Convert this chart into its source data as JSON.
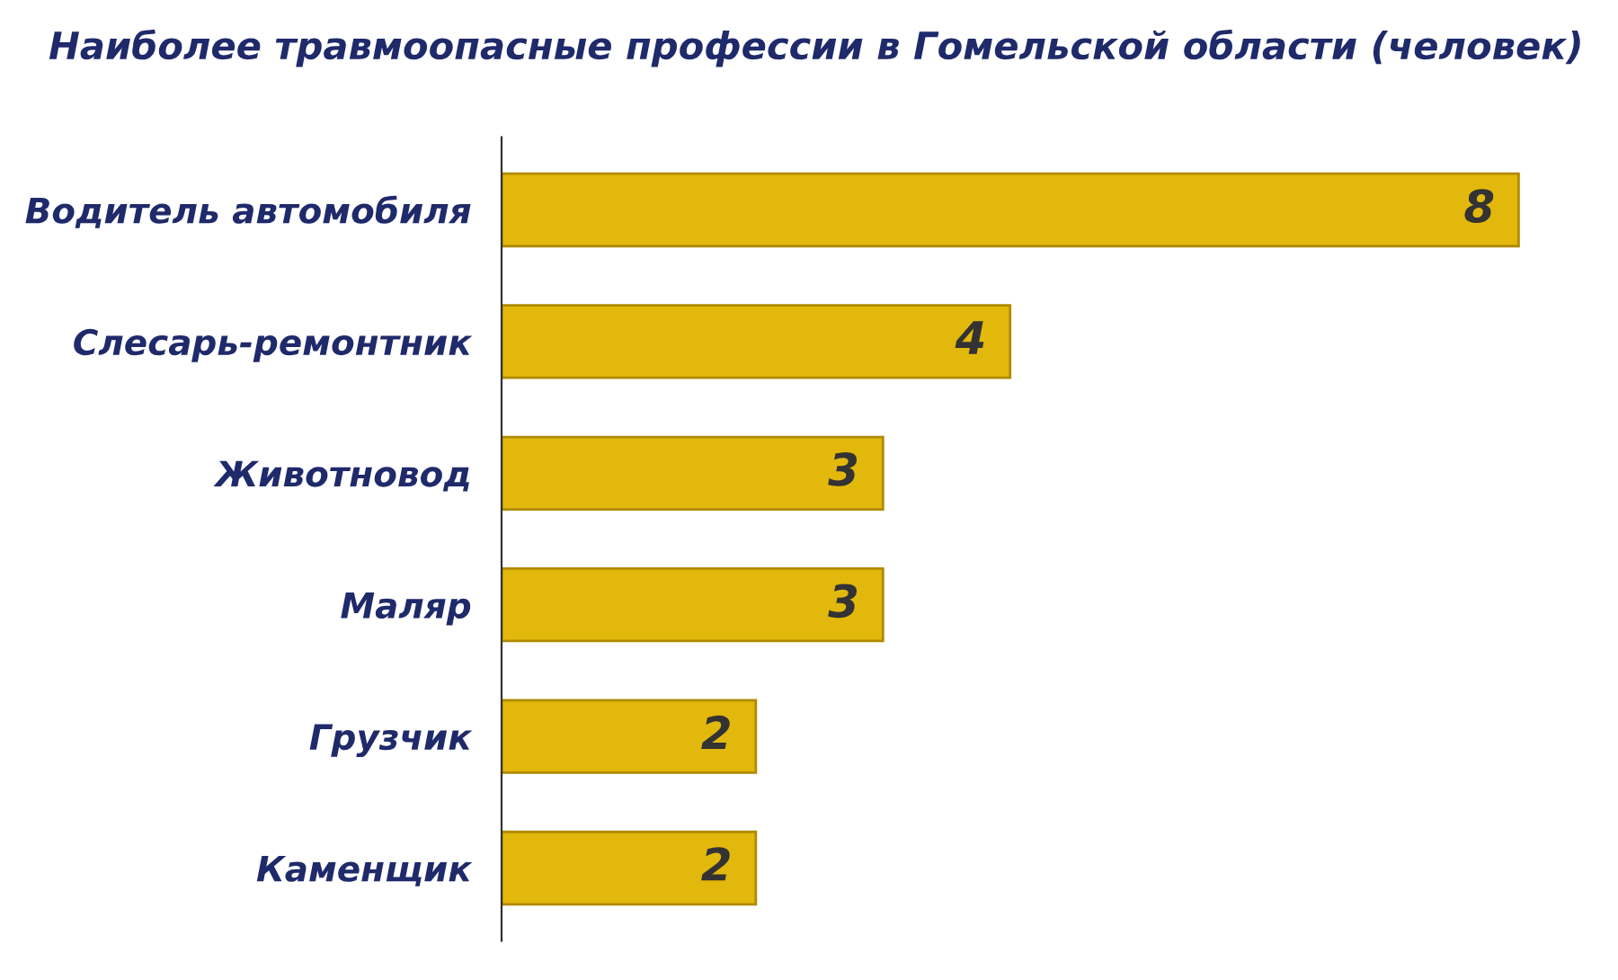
{
  "chart_data": {
    "type": "bar",
    "orientation": "horizontal",
    "title": "Наиболее травмоопасные профессии в Гомельской области (человек)",
    "categories": [
      "Водитель автомобиля",
      "Слесарь-ремонтник",
      "Животновод",
      "Маляр",
      "Грузчик",
      "Каменщик"
    ],
    "values": [
      8,
      4,
      3,
      3,
      2,
      2
    ],
    "color": "#e3b80c",
    "data_labels": true
  }
}
